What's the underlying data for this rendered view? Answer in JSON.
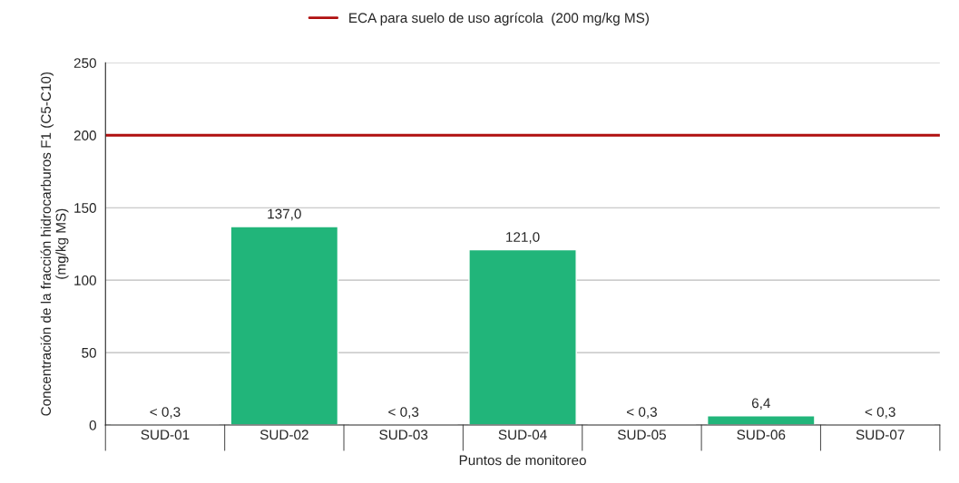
{
  "chart_data": {
    "type": "bar",
    "xlabel": "Puntos de monitoreo",
    "ylabel": "Concentración de la fracción hidrocarburos F1 (C5-C10)\n(mg/kg MS)",
    "categories": [
      "SUD-01",
      "SUD-02",
      "SUD-03",
      "SUD-04",
      "SUD-05",
      "SUD-06",
      "SUD-07"
    ],
    "values": [
      0.3,
      137.0,
      0.3,
      121.0,
      0.3,
      6.4,
      0.3
    ],
    "value_labels": [
      "< 0,3",
      "137,0",
      "< 0,3",
      "121,0",
      "< 0,3",
      "6,4",
      "< 0,3"
    ],
    "color": "#21b57a",
    "ylim": [
      0,
      250
    ],
    "yticks": [
      0,
      50,
      100,
      150,
      200,
      250
    ],
    "grid": "y",
    "legend": "top",
    "ref_lines": [
      {
        "axis": "y",
        "value": 200,
        "label": "ECA para suelo de uso agrícola  (200 mg/kg MS)",
        "color": "#b01010",
        "line_style": "solid"
      }
    ]
  }
}
